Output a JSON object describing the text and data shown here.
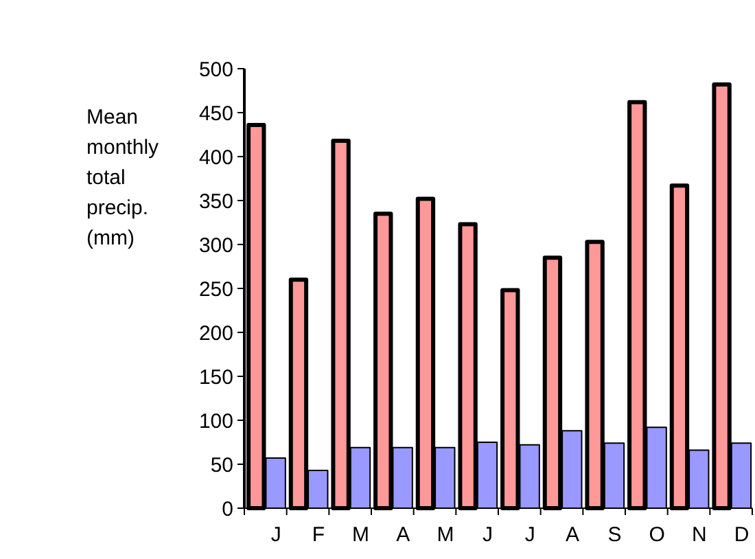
{
  "chart_data": {
    "type": "bar",
    "ylabel": "Mean monthly total precip. (mm)",
    "categories": [
      "J",
      "F",
      "M",
      "A",
      "M",
      "J",
      "J",
      "A",
      "S",
      "O",
      "N",
      "D"
    ],
    "series": [
      {
        "color": "#ff9999",
        "values": [
          436,
          260,
          418,
          335,
          352,
          323,
          248,
          285,
          303,
          462,
          367,
          482
        ]
      },
      {
        "color": "#9999ff",
        "values": [
          57,
          43,
          69,
          69,
          69,
          75,
          72,
          88,
          74,
          92,
          66,
          74
        ]
      }
    ],
    "ylim": [
      0,
      500
    ],
    "yticks": [
      0,
      50,
      100,
      150,
      200,
      250,
      300,
      350,
      400,
      450,
      500
    ],
    "grid": false
  }
}
